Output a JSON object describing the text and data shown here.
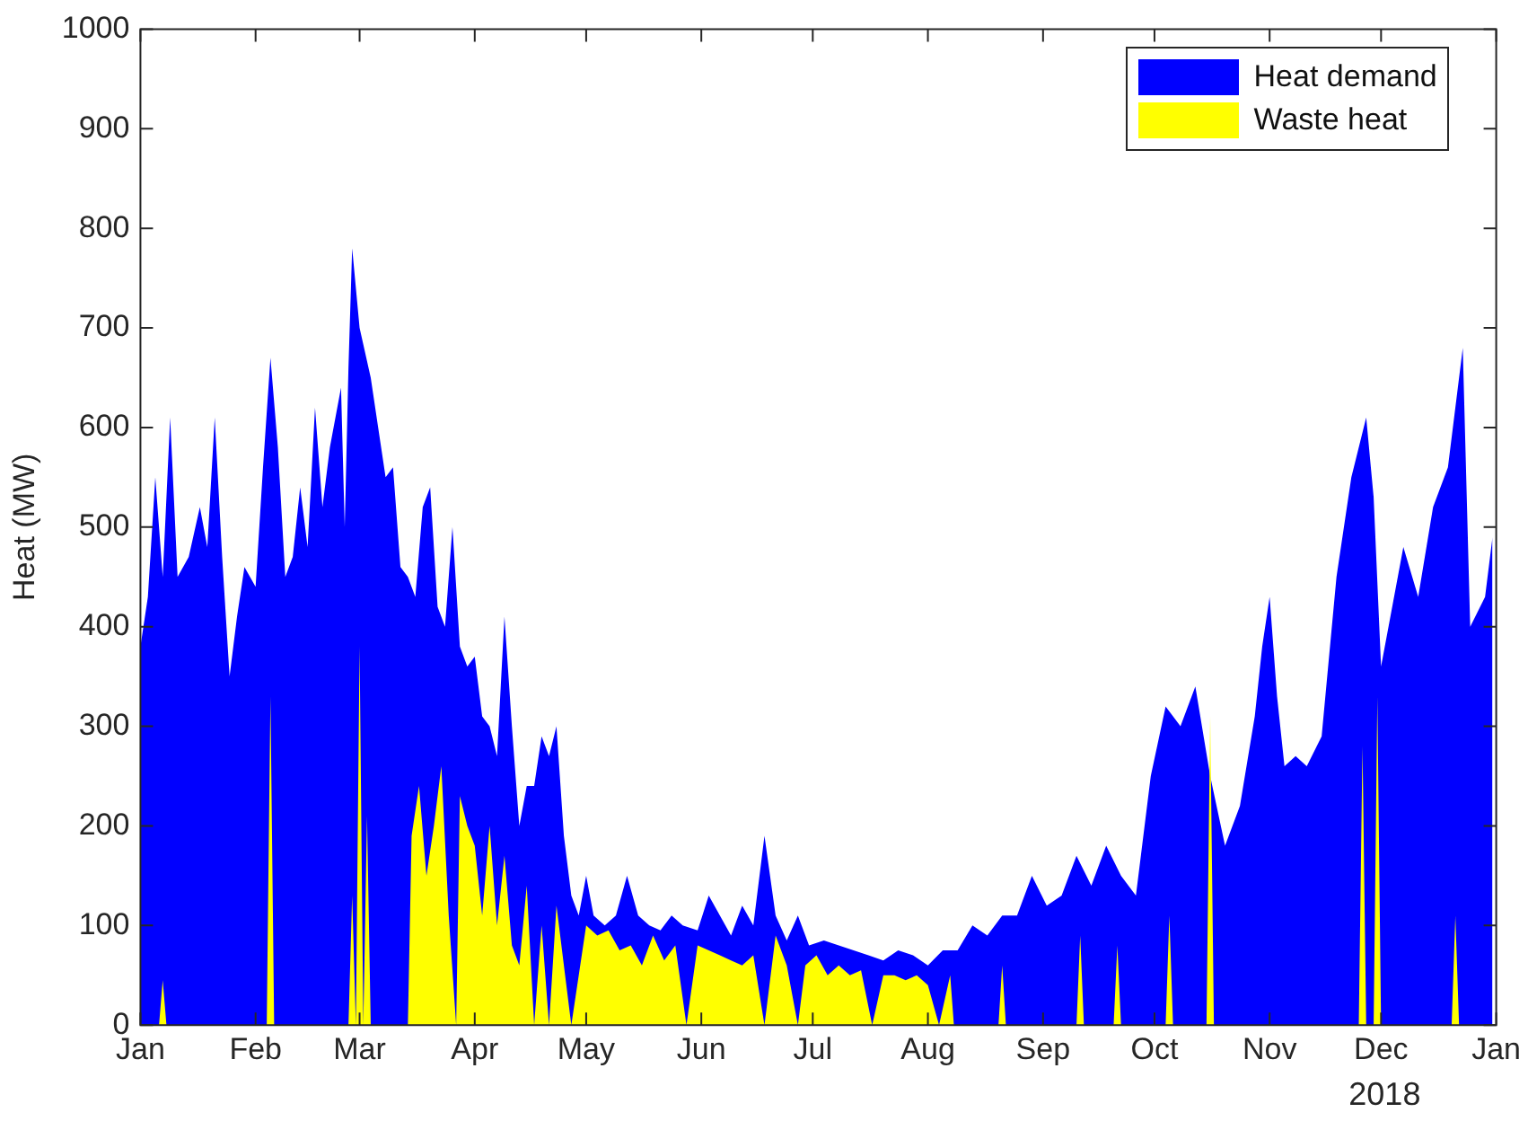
{
  "chart_data": {
    "type": "area",
    "ylabel": "Heat (MW)",
    "annotations": [
      "2018"
    ],
    "legend": "top right",
    "grid": false,
    "xlim": [
      "2018-01-01",
      "2019-01-01"
    ],
    "xticks": [
      {
        "value": "2018-01-01",
        "label": "Jan"
      },
      {
        "value": "2018-02-01",
        "label": "Feb"
      },
      {
        "value": "2018-03-01",
        "label": "Mar"
      },
      {
        "value": "2018-04-01",
        "label": "Apr"
      },
      {
        "value": "2018-05-01",
        "label": "May"
      },
      {
        "value": "2018-06-01",
        "label": "Jun"
      },
      {
        "value": "2018-07-01",
        "label": "Jul"
      },
      {
        "value": "2018-08-01",
        "label": "Aug"
      },
      {
        "value": "2018-09-01",
        "label": "Sep"
      },
      {
        "value": "2018-10-01",
        "label": "Oct"
      },
      {
        "value": "2018-11-01",
        "label": "Nov"
      },
      {
        "value": "2018-12-01",
        "label": "Dec"
      },
      {
        "value": "2019-01-01",
        "label": "Jan"
      }
    ],
    "ylim": [
      0,
      1000
    ],
    "yticks": [
      0,
      100,
      200,
      300,
      400,
      500,
      600,
      700,
      800,
      900,
      1000
    ],
    "series": [
      {
        "name": "Heat demand",
        "color": "#0000ff",
        "x": [
          "2018-01-01",
          "2018-01-03",
          "2018-01-05",
          "2018-01-07",
          "2018-01-09",
          "2018-01-11",
          "2018-01-14",
          "2018-01-17",
          "2018-01-19",
          "2018-01-21",
          "2018-01-23",
          "2018-01-25",
          "2018-01-27",
          "2018-01-29",
          "2018-02-01",
          "2018-02-03",
          "2018-02-05",
          "2018-02-07",
          "2018-02-09",
          "2018-02-11",
          "2018-02-13",
          "2018-02-15",
          "2018-02-17",
          "2018-02-19",
          "2018-02-21",
          "2018-02-24",
          "2018-02-25",
          "2018-02-26",
          "2018-02-27",
          "2018-03-01",
          "2018-03-04",
          "2018-03-06",
          "2018-03-08",
          "2018-03-10",
          "2018-03-12",
          "2018-03-14",
          "2018-03-16",
          "2018-03-18",
          "2018-03-20",
          "2018-03-22",
          "2018-03-24",
          "2018-03-26",
          "2018-03-28",
          "2018-03-30",
          "2018-04-01",
          "2018-04-03",
          "2018-04-05",
          "2018-04-07",
          "2018-04-09",
          "2018-04-11",
          "2018-04-13",
          "2018-04-15",
          "2018-04-17",
          "2018-04-19",
          "2018-04-21",
          "2018-04-23",
          "2018-04-25",
          "2018-04-27",
          "2018-04-29",
          "2018-05-01",
          "2018-05-03",
          "2018-05-06",
          "2018-05-09",
          "2018-05-12",
          "2018-05-15",
          "2018-05-18",
          "2018-05-21",
          "2018-05-24",
          "2018-05-27",
          "2018-05-31",
          "2018-06-03",
          "2018-06-06",
          "2018-06-09",
          "2018-06-12",
          "2018-06-15",
          "2018-06-18",
          "2018-06-21",
          "2018-06-24",
          "2018-06-27",
          "2018-06-30",
          "2018-07-04",
          "2018-07-08",
          "2018-07-12",
          "2018-07-16",
          "2018-07-20",
          "2018-07-24",
          "2018-07-28",
          "2018-08-01",
          "2018-08-05",
          "2018-08-09",
          "2018-08-13",
          "2018-08-17",
          "2018-08-21",
          "2018-08-25",
          "2018-08-29",
          "2018-09-02",
          "2018-09-06",
          "2018-09-10",
          "2018-09-14",
          "2018-09-18",
          "2018-09-22",
          "2018-09-26",
          "2018-09-30",
          "2018-10-04",
          "2018-10-08",
          "2018-10-12",
          "2018-10-16",
          "2018-10-20",
          "2018-10-24",
          "2018-10-28",
          "2018-10-30",
          "2018-11-01",
          "2018-11-03",
          "2018-11-05",
          "2018-11-08",
          "2018-11-11",
          "2018-11-15",
          "2018-11-19",
          "2018-11-23",
          "2018-11-27",
          "2018-11-29",
          "2018-12-01",
          "2018-12-03",
          "2018-12-07",
          "2018-12-11",
          "2018-12-15",
          "2018-12-19",
          "2018-12-23",
          "2018-12-25",
          "2018-12-29",
          "2018-12-31"
        ],
        "values": [
          380,
          430,
          550,
          450,
          610,
          450,
          470,
          520,
          480,
          610,
          470,
          350,
          410,
          460,
          440,
          560,
          670,
          580,
          450,
          470,
          540,
          480,
          620,
          520,
          580,
          640,
          500,
          660,
          780,
          700,
          650,
          600,
          550,
          560,
          460,
          450,
          430,
          520,
          540,
          420,
          400,
          500,
          380,
          360,
          370,
          310,
          300,
          270,
          410,
          300,
          200,
          240,
          240,
          290,
          270,
          300,
          190,
          130,
          110,
          150,
          110,
          100,
          110,
          150,
          110,
          100,
          95,
          110,
          100,
          95,
          130,
          110,
          90,
          120,
          100,
          190,
          110,
          85,
          110,
          80,
          85,
          80,
          75,
          70,
          65,
          75,
          70,
          60,
          75,
          75,
          100,
          90,
          110,
          110,
          150,
          120,
          130,
          170,
          140,
          180,
          150,
          130,
          250,
          320,
          300,
          340,
          250,
          180,
          220,
          310,
          380,
          430,
          330,
          260,
          270,
          260,
          290,
          450,
          550,
          610,
          530,
          360,
          400,
          480,
          430,
          520,
          560,
          680,
          400,
          430,
          490
        ]
      },
      {
        "name": "Waste heat",
        "color": "#ffff00",
        "x": [
          "2018-01-01",
          "2018-01-06",
          "2018-01-07",
          "2018-01-08",
          "2018-02-04",
          "2018-02-05",
          "2018-02-06",
          "2018-02-26",
          "2018-02-27",
          "2018-02-28",
          "2018-03-01",
          "2018-03-02",
          "2018-03-03",
          "2018-03-04",
          "2018-03-14",
          "2018-03-15",
          "2018-03-17",
          "2018-03-19",
          "2018-03-21",
          "2018-03-23",
          "2018-03-25",
          "2018-03-27",
          "2018-03-28",
          "2018-03-30",
          "2018-04-01",
          "2018-04-03",
          "2018-04-05",
          "2018-04-07",
          "2018-04-09",
          "2018-04-11",
          "2018-04-13",
          "2018-04-15",
          "2018-04-17",
          "2018-04-19",
          "2018-04-21",
          "2018-04-23",
          "2018-04-25",
          "2018-04-27",
          "2018-05-01",
          "2018-05-04",
          "2018-05-07",
          "2018-05-10",
          "2018-05-13",
          "2018-05-16",
          "2018-05-19",
          "2018-05-22",
          "2018-05-25",
          "2018-05-28",
          "2018-05-31",
          "2018-06-03",
          "2018-06-06",
          "2018-06-09",
          "2018-06-12",
          "2018-06-15",
          "2018-06-18",
          "2018-06-21",
          "2018-06-24",
          "2018-06-27",
          "2018-06-29",
          "2018-07-02",
          "2018-07-05",
          "2018-07-08",
          "2018-07-11",
          "2018-07-14",
          "2018-07-17",
          "2018-07-20",
          "2018-07-23",
          "2018-07-26",
          "2018-07-29",
          "2018-08-01",
          "2018-08-04",
          "2018-08-07",
          "2018-08-08",
          "2018-08-20",
          "2018-08-21",
          "2018-08-22",
          "2018-09-10",
          "2018-09-11",
          "2018-09-12",
          "2018-09-20",
          "2018-09-21",
          "2018-09-22",
          "2018-10-04",
          "2018-10-05",
          "2018-10-06",
          "2018-10-15",
          "2018-10-16",
          "2018-10-17",
          "2018-11-25",
          "2018-11-26",
          "2018-11-27",
          "2018-11-29",
          "2018-11-30",
          "2018-12-01",
          "2018-12-20",
          "2018-12-21",
          "2018-12-22",
          "2018-12-31"
        ],
        "values": [
          0,
          0,
          45,
          0,
          0,
          330,
          0,
          0,
          130,
          0,
          380,
          0,
          210,
          0,
          0,
          190,
          240,
          150,
          200,
          260,
          110,
          0,
          230,
          200,
          180,
          110,
          200,
          100,
          170,
          80,
          60,
          140,
          0,
          100,
          0,
          120,
          60,
          0,
          100,
          90,
          95,
          75,
          80,
          60,
          90,
          65,
          80,
          0,
          80,
          75,
          70,
          65,
          60,
          70,
          0,
          90,
          60,
          0,
          60,
          70,
          50,
          60,
          50,
          55,
          0,
          50,
          50,
          45,
          50,
          40,
          0,
          50,
          0,
          0,
          60,
          0,
          0,
          90,
          0,
          0,
          80,
          0,
          0,
          110,
          0,
          0,
          310,
          0,
          0,
          280,
          0,
          0,
          330,
          0,
          0,
          110,
          0,
          0
        ]
      }
    ]
  }
}
